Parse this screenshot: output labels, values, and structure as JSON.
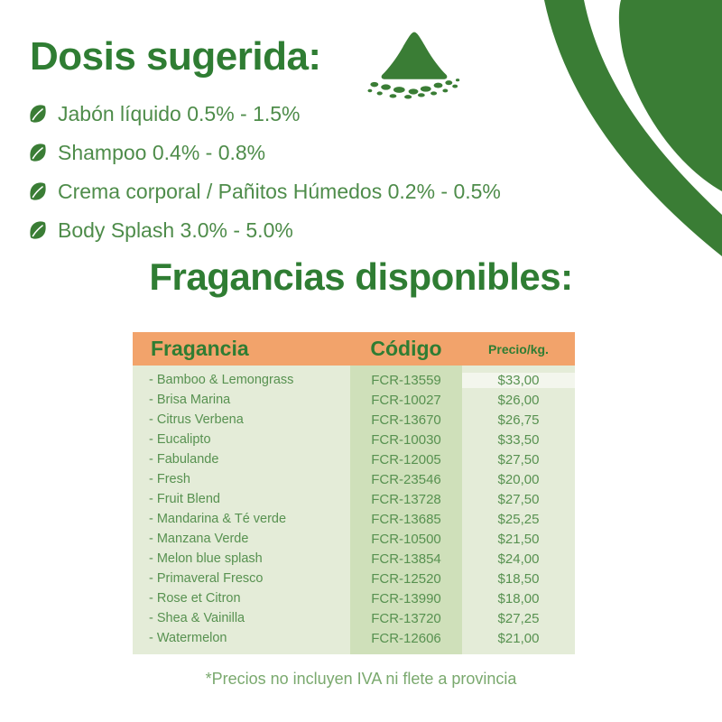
{
  "colors": {
    "brand_green": "#2f7d33",
    "list_green": "#4e8c4a",
    "table_text_green": "#579150",
    "header_orange": "#f2a36b",
    "row_bg_light": "#e4ecd8",
    "code_col_bg": "#cfe0ba",
    "footnote_green": "#7aa96e"
  },
  "dosage_section": {
    "title": "Dosis sugerida:",
    "icon": "powder-pile-icon",
    "items": [
      {
        "icon": "leaf-icon",
        "label": "Jabón líquido 0.5% - 1.5%"
      },
      {
        "icon": "leaf-icon",
        "label": "Shampoo 0.4% - 0.8%"
      },
      {
        "icon": "leaf-icon",
        "label": "Crema corporal / Pañitos Húmedos 0.2% - 0.5%"
      },
      {
        "icon": "leaf-icon",
        "label": "Body Splash 3.0% - 5.0%"
      }
    ]
  },
  "fragrances_section": {
    "title": "Fragancias disponibles:",
    "table": {
      "columns": [
        "Fragancia",
        "Código",
        "Precio/kg."
      ],
      "bullet_prefix": "- ",
      "rows": [
        {
          "name": "Bamboo & Lemongrass",
          "code": "FCR-13559",
          "price": "$33,00"
        },
        {
          "name": "Brisa Marina",
          "code": "FCR-10027",
          "price": "$26,00"
        },
        {
          "name": "Citrus Verbena",
          "code": "FCR-13670",
          "price": "$26,75"
        },
        {
          "name": "Eucalipto",
          "code": "FCR-10030",
          "price": "$33,50"
        },
        {
          "name": "Fabulande",
          "code": "FCR-12005",
          "price": "$27,50"
        },
        {
          "name": "Fresh",
          "code": "FCR-23546",
          "price": "$20,00"
        },
        {
          "name": "Fruit Blend",
          "code": "FCR-13728",
          "price": "$27,50"
        },
        {
          "name": "Mandarina & Té verde",
          "code": "FCR-13685",
          "price": "$25,25"
        },
        {
          "name": "Manzana Verde",
          "code": "FCR-10500",
          "price": "$21,50"
        },
        {
          "name": "Melon blue splash",
          "code": "FCR-13854",
          "price": "$24,00"
        },
        {
          "name": "Primaveral Fresco",
          "code": "FCR-12520",
          "price": "$18,50"
        },
        {
          "name": "Rose et Citron",
          "code": "FCR-13990",
          "price": "$18,00"
        },
        {
          "name": "Shea & Vainilla",
          "code": "FCR-13720",
          "price": "$27,25"
        },
        {
          "name": "Watermelon",
          "code": "FCR-12606",
          "price": "$21,00"
        }
      ]
    },
    "footnote": "*Precios no incluyen IVA ni flete a provincia"
  },
  "decorations": {
    "corner_shape": "leaf-corner-top-right"
  }
}
